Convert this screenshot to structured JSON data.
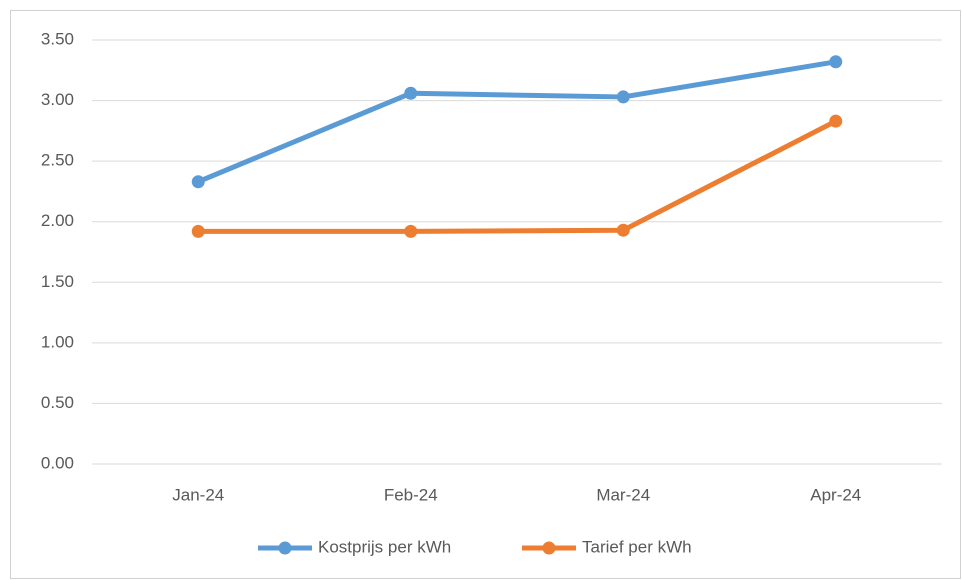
{
  "chart_data": {
    "type": "line",
    "categories": [
      "Jan-24",
      "Feb-24",
      "Mar-24",
      "Apr-24"
    ],
    "series": [
      {
        "name": "Kostprijs per kWh",
        "color": "#5b9bd5",
        "values": [
          2.33,
          3.06,
          3.03,
          3.32
        ]
      },
      {
        "name": "Tarief per kWh",
        "color": "#ed7d31",
        "values": [
          1.92,
          1.92,
          1.93,
          2.83
        ]
      }
    ],
    "ylim": [
      0,
      3.5
    ],
    "yticks": [
      {
        "value": 0,
        "label": "0.00"
      },
      {
        "value": 0.5,
        "label": "0.50"
      },
      {
        "value": 1,
        "label": "1.00"
      },
      {
        "value": 1.5,
        "label": "1.50"
      },
      {
        "value": 2,
        "label": "2.00"
      },
      {
        "value": 2.5,
        "label": "2.50"
      },
      {
        "value": 3,
        "label": "3.00"
      },
      {
        "value": 3.5,
        "label": "3.50"
      }
    ],
    "grid": true,
    "legend": "bottom"
  }
}
